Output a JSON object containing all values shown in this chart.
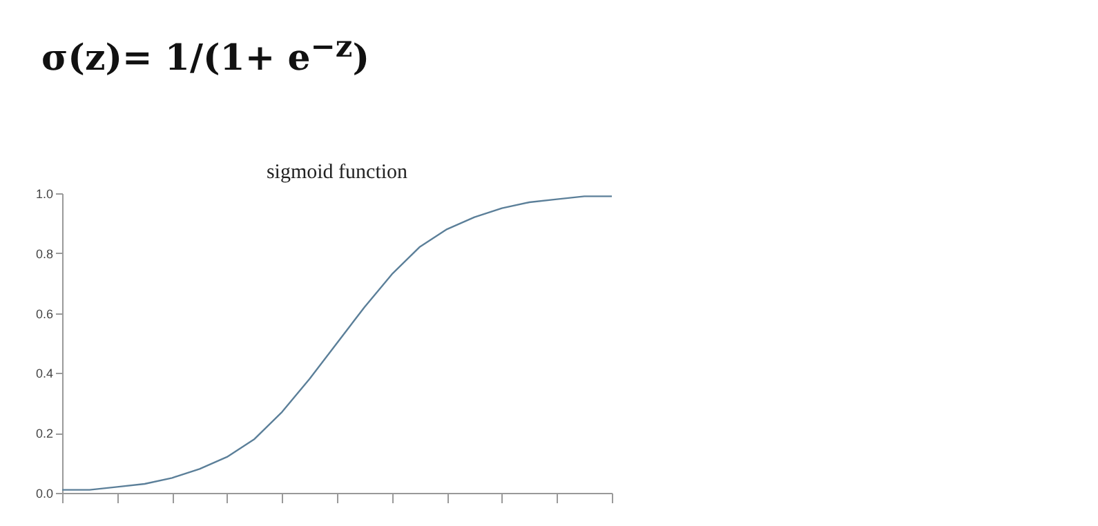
{
  "chart_data": {
    "type": "line",
    "title": "sigmoid function",
    "annotations": [
      "σ(z)= 1/(1+ e$^{−z}$)"
    ],
    "categories": [
      null,
      null,
      null,
      null,
      null,
      null,
      null,
      null,
      null,
      null,
      null,
      null,
      null,
      null,
      null,
      null,
      null,
      null,
      null,
      null,
      null
    ],
    "series": [
      {
        "color": "#5b7f99",
        "values": [
          0.01,
          0.01,
          0.02,
          0.03,
          0.05,
          0.08,
          0.12,
          0.18,
          0.27,
          0.38,
          0.5,
          0.62,
          0.73,
          0.82,
          0.88,
          0.92,
          0.95,
          0.97,
          0.98,
          0.99,
          0.99
        ]
      }
    ],
    "ylim": [
      0,
      1
    ],
    "yticks": [
      {
        "value": 0,
        "label": "0.0"
      },
      {
        "value": 0.2,
        "label": "0.2"
      },
      {
        "value": 0.4,
        "label": "0.4"
      },
      {
        "value": 0.6,
        "label": "0.6"
      },
      {
        "value": 0.8,
        "label": "0.8"
      },
      {
        "value": 1,
        "label": "1.0"
      }
    ],
    "tick_labels": "y",
    "grid": false,
    "legend": false,
    "marker": "none",
    "line_style": "solid"
  }
}
